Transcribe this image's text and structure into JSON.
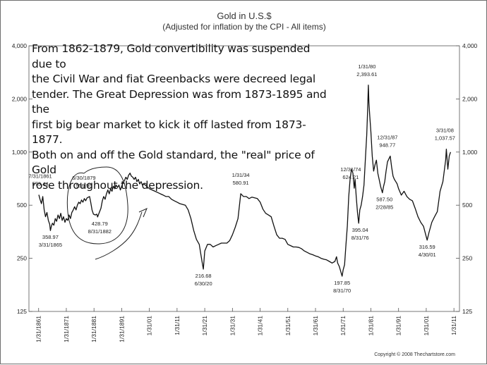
{
  "chart_data": {
    "type": "line",
    "title": "Gold in U.S.$",
    "subtitle": "(Adjusted for inflation by the CPI - All items)",
    "xlabel": "",
    "ylabel": "",
    "scale": "log",
    "ylim": [
      125,
      4000
    ],
    "y_ticks": [
      125,
      250,
      500,
      1000,
      2000,
      4000
    ],
    "y_tick_labels": [
      "125",
      "250",
      "500",
      "1,000",
      "2,000",
      "4,000"
    ],
    "x_tick_labels": [
      "1/31/1861",
      "1/31/1871",
      "1/31/1881",
      "1/31/1891",
      "1/31/01",
      "1/31/11",
      "1/31/21",
      "1/31/31",
      "1/31/41",
      "1/31/51",
      "1/31/61",
      "1/31/71",
      "1/31/81",
      "1/31/91",
      "1/31/01",
      "1/31/11"
    ],
    "x_tick_years": [
      1861,
      1871,
      1881,
      1891,
      1901,
      1911,
      1921,
      1931,
      1941,
      1951,
      1961,
      1971,
      1981,
      1991,
      2001,
      2011
    ],
    "xlim": [
      1857.5,
      2013
    ],
    "grid": "none",
    "series": [
      {
        "points": [
          [
            1861.08,
            573
          ],
          [
            1861.5,
            540
          ],
          [
            1862,
            510
          ],
          [
            1862.5,
            560
          ],
          [
            1863,
            470
          ],
          [
            1863.5,
            430
          ],
          [
            1864,
            455
          ],
          [
            1864.5,
            410
          ],
          [
            1865,
            390
          ],
          [
            1865.25,
            359
          ],
          [
            1865.6,
            380
          ],
          [
            1866,
            395
          ],
          [
            1866.5,
            385
          ],
          [
            1867,
            420
          ],
          [
            1867.5,
            405
          ],
          [
            1868,
            440
          ],
          [
            1868.5,
            420
          ],
          [
            1869,
            450
          ],
          [
            1869.5,
            410
          ],
          [
            1870,
            430
          ],
          [
            1870.5,
            400
          ],
          [
            1871,
            420
          ],
          [
            1871.5,
            410
          ],
          [
            1872,
            440
          ],
          [
            1872.5,
            420
          ],
          [
            1873,
            455
          ],
          [
            1873.5,
            470
          ],
          [
            1874,
            490
          ],
          [
            1874.5,
            470
          ],
          [
            1875,
            500
          ],
          [
            1875.5,
            520
          ],
          [
            1876,
            510
          ],
          [
            1876.5,
            535
          ],
          [
            1877,
            520
          ],
          [
            1877.5,
            545
          ],
          [
            1878,
            530
          ],
          [
            1878.5,
            550
          ],
          [
            1879.4,
            560
          ],
          [
            1879.8,
            520
          ],
          [
            1880.3,
            470
          ],
          [
            1880.8,
            445
          ],
          [
            1881.5,
            440
          ],
          [
            1882,
            445
          ],
          [
            1882.3,
            429
          ],
          [
            1882.8,
            450
          ],
          [
            1883.5,
            480
          ],
          [
            1884,
            530
          ],
          [
            1884.5,
            560
          ],
          [
            1885,
            540
          ],
          [
            1885.5,
            580
          ],
          [
            1886,
            610
          ],
          [
            1886.5,
            580
          ],
          [
            1887,
            620
          ],
          [
            1887.5,
            600
          ],
          [
            1888,
            640
          ],
          [
            1888.5,
            620
          ],
          [
            1889,
            650
          ],
          [
            1889.5,
            630
          ],
          [
            1890,
            650
          ],
          [
            1890.5,
            610
          ],
          [
            1891,
            640
          ],
          [
            1891.5,
            670
          ],
          [
            1892,
            690
          ],
          [
            1892.5,
            720
          ],
          [
            1893,
            700
          ],
          [
            1893.5,
            740
          ],
          [
            1894,
            760
          ],
          [
            1894.5,
            730
          ],
          [
            1895,
            720
          ],
          [
            1895.5,
            700
          ],
          [
            1896,
            720
          ],
          [
            1896.5,
            680
          ],
          [
            1897,
            700
          ],
          [
            1897.5,
            660
          ],
          [
            1898,
            680
          ],
          [
            1898.5,
            650
          ],
          [
            1899,
            660
          ],
          [
            1900,
            640
          ],
          [
            1901,
            620
          ],
          [
            1902,
            610
          ],
          [
            1903,
            600
          ],
          [
            1904,
            590
          ],
          [
            1905,
            580
          ],
          [
            1906,
            570
          ],
          [
            1907,
            560
          ],
          [
            1908,
            560
          ],
          [
            1909,
            540
          ],
          [
            1910,
            530
          ],
          [
            1911,
            520
          ],
          [
            1912,
            510
          ],
          [
            1913,
            505
          ],
          [
            1914,
            500
          ],
          [
            1915,
            470
          ],
          [
            1916,
            420
          ],
          [
            1917,
            360
          ],
          [
            1918,
            320
          ],
          [
            1919,
            300
          ],
          [
            1920,
            240
          ],
          [
            1920.5,
            217
          ],
          [
            1921,
            275
          ],
          [
            1922,
            300
          ],
          [
            1923,
            300
          ],
          [
            1924,
            290
          ],
          [
            1925,
            295
          ],
          [
            1926,
            300
          ],
          [
            1927,
            305
          ],
          [
            1928,
            305
          ],
          [
            1929,
            305
          ],
          [
            1930,
            315
          ],
          [
            1931,
            340
          ],
          [
            1932,
            375
          ],
          [
            1933,
            420
          ],
          [
            1934,
            581
          ],
          [
            1935,
            560
          ],
          [
            1936,
            560
          ],
          [
            1937,
            545
          ],
          [
            1938,
            555
          ],
          [
            1939,
            550
          ],
          [
            1940,
            545
          ],
          [
            1941,
            520
          ],
          [
            1942,
            475
          ],
          [
            1943,
            450
          ],
          [
            1944,
            440
          ],
          [
            1945,
            430
          ],
          [
            1946,
            380
          ],
          [
            1947,
            340
          ],
          [
            1948,
            325
          ],
          [
            1949,
            325
          ],
          [
            1950,
            320
          ],
          [
            1951,
            300
          ],
          [
            1952,
            295
          ],
          [
            1953,
            290
          ],
          [
            1954,
            290
          ],
          [
            1955,
            288
          ],
          [
            1956,
            283
          ],
          [
            1957,
            275
          ],
          [
            1958,
            270
          ],
          [
            1959,
            265
          ],
          [
            1960,
            262
          ],
          [
            1961,
            258
          ],
          [
            1962,
            255
          ],
          [
            1963,
            250
          ],
          [
            1964,
            247
          ],
          [
            1965,
            245
          ],
          [
            1966,
            240
          ],
          [
            1967,
            235
          ],
          [
            1968,
            240
          ],
          [
            1968.6,
            255
          ],
          [
            1969,
            235
          ],
          [
            1969.6,
            225
          ],
          [
            1970.6,
            198
          ],
          [
            1971,
            215
          ],
          [
            1971.5,
            230
          ],
          [
            1972,
            300
          ],
          [
            1972.5,
            380
          ],
          [
            1973,
            560
          ],
          [
            1973.5,
            700
          ],
          [
            1974,
            800
          ],
          [
            1974.5,
            760
          ],
          [
            1974.99,
            624
          ],
          [
            1975.3,
            700
          ],
          [
            1975.7,
            560
          ],
          [
            1976.2,
            450
          ],
          [
            1976.6,
            395
          ],
          [
            1977,
            470
          ],
          [
            1977.5,
            500
          ],
          [
            1978,
            560
          ],
          [
            1978.5,
            650
          ],
          [
            1979,
            900
          ],
          [
            1979.5,
            1250
          ],
          [
            1979.8,
            1700
          ],
          [
            1980.08,
            2394
          ],
          [
            1980.3,
            1900
          ],
          [
            1980.6,
            1600
          ],
          [
            1981,
            1300
          ],
          [
            1981.5,
            950
          ],
          [
            1982,
            780
          ],
          [
            1982.5,
            850
          ],
          [
            1983,
            900
          ],
          [
            1983.5,
            760
          ],
          [
            1984,
            700
          ],
          [
            1984.5,
            640
          ],
          [
            1985.16,
            588
          ],
          [
            1985.6,
            640
          ],
          [
            1986,
            680
          ],
          [
            1986.5,
            780
          ],
          [
            1987,
            880
          ],
          [
            1987.99,
            949
          ],
          [
            1988.5,
            820
          ],
          [
            1989,
            730
          ],
          [
            1989.5,
            700
          ],
          [
            1990,
            680
          ],
          [
            1990.5,
            660
          ],
          [
            1991,
            620
          ],
          [
            1992,
            570
          ],
          [
            1993,
            600
          ],
          [
            1994,
            560
          ],
          [
            1995,
            540
          ],
          [
            1996,
            530
          ],
          [
            1997,
            480
          ],
          [
            1998,
            430
          ],
          [
            1999,
            400
          ],
          [
            2000,
            380
          ],
          [
            2001.33,
            317
          ],
          [
            2002,
            350
          ],
          [
            2003,
            400
          ],
          [
            2004,
            430
          ],
          [
            2005,
            460
          ],
          [
            2006,
            600
          ],
          [
            2007,
            680
          ],
          [
            2008,
            900
          ],
          [
            2008.25,
            1038
          ],
          [
            2008.8,
            800
          ],
          [
            2009.3,
            950
          ],
          [
            2009.8,
            1000
          ]
        ]
      }
    ],
    "callouts": [
      {
        "date": "7/31/1861",
        "value": "573.44"
      },
      {
        "date": "6/30/1879",
        "value": "559.95"
      },
      {
        "date": "3/31/1865",
        "value": "358.97"
      },
      {
        "date": "8/31/1882",
        "value": "428.79"
      },
      {
        "date": "1/31/34",
        "value": "580.91"
      },
      {
        "date": "6/30/20",
        "value": "216.68"
      },
      {
        "date": "8/31/70",
        "value": "197.85"
      },
      {
        "date": "12/31/74",
        "value": "624.21"
      },
      {
        "date": "8/31/76",
        "value": "395.04"
      },
      {
        "date": "1/31/80",
        "value": "2,393.61"
      },
      {
        "date": "2/28/85",
        "value": "587.50"
      },
      {
        "date": "12/31/87",
        "value": "948.77"
      },
      {
        "date": "4/30/01",
        "value": "316.59"
      },
      {
        "date": "3/31/08",
        "value": "1,037.57"
      }
    ],
    "annotation_lines": [
      "From 1862-1879, Gold convertibility was suspended due to",
      "the Civil War and fiat Greenbacks were decreed legal",
      "tender. The Great Depression was from 1873-1895 and the",
      "first big bear market to kick it off lasted from 1873-1877.",
      "Both on and off the Gold standard, the \"real\" price of Gold",
      "rose throughout the depression."
    ],
    "copyright": "Copyright © 2008 Thechartstore.com"
  }
}
